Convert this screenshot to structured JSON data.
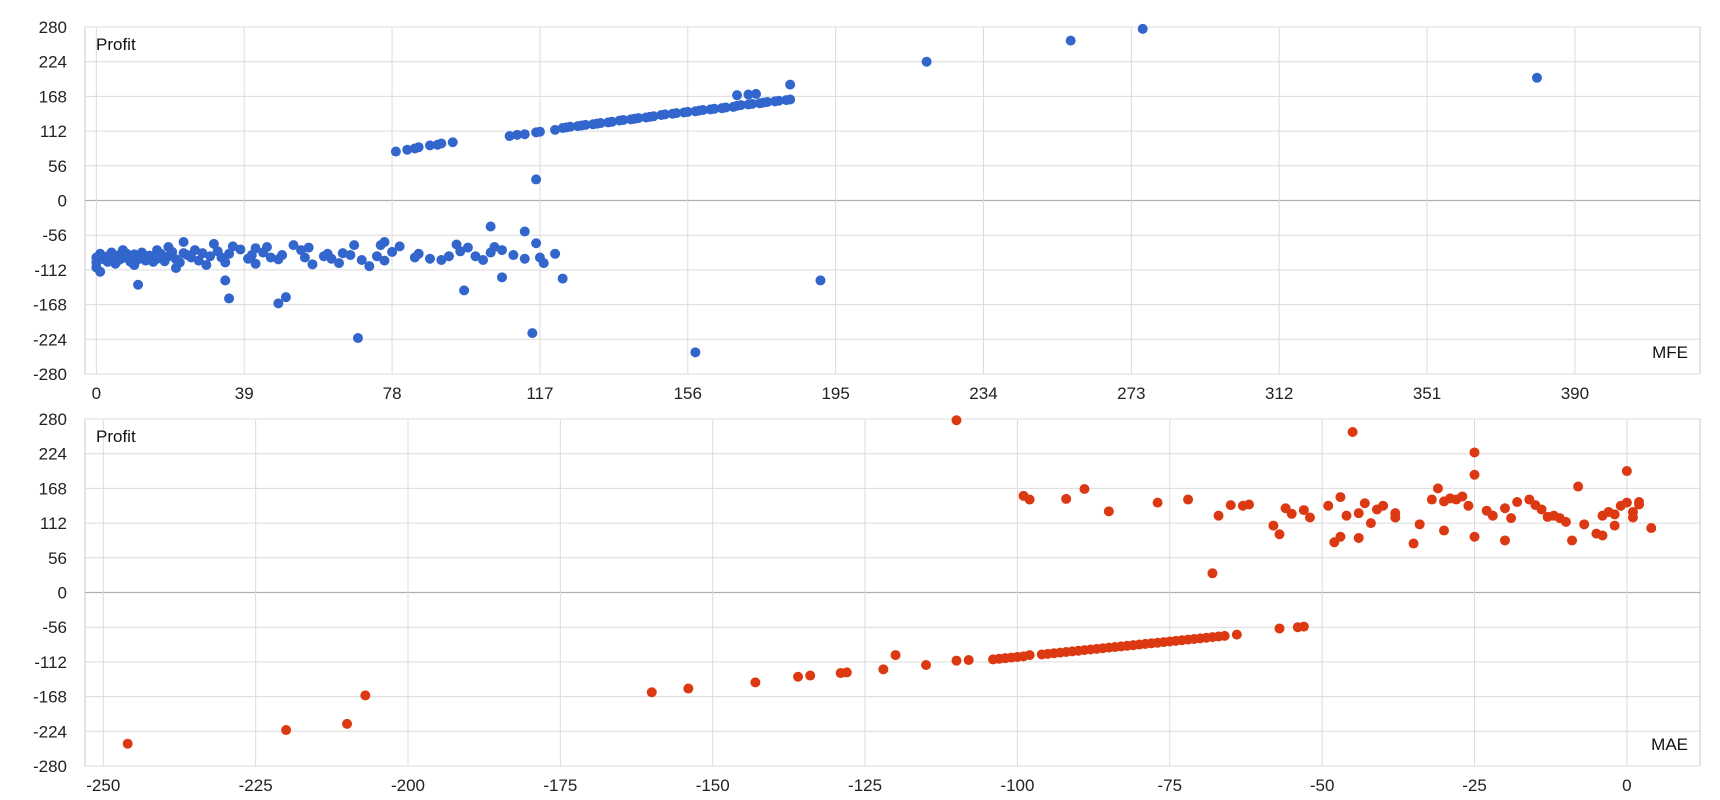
{
  "chart_data": [
    {
      "type": "scatter",
      "title": "",
      "xlabel": "MFE",
      "ylabel": "Profit",
      "xlim": [
        -3,
        423
      ],
      "ylim": [
        -280,
        280
      ],
      "xticks": [
        0,
        39,
        78,
        117,
        156,
        195,
        234,
        273,
        312,
        351,
        390
      ],
      "yticks": [
        280,
        224,
        168,
        112,
        56,
        0,
        -56,
        -112,
        -168,
        -224,
        -280
      ],
      "grid": true,
      "legend": "none",
      "color": "#3366cc",
      "points": [
        [
          0,
          -92
        ],
        [
          0,
          -100
        ],
        [
          0,
          -108
        ],
        [
          1,
          -86
        ],
        [
          1,
          -115
        ],
        [
          2,
          -95
        ],
        [
          3,
          -90
        ],
        [
          3,
          -99
        ],
        [
          4,
          -84
        ],
        [
          5,
          -92
        ],
        [
          5,
          -102
        ],
        [
          6,
          -88
        ],
        [
          6,
          -96
        ],
        [
          7,
          -80
        ],
        [
          7,
          -93
        ],
        [
          8,
          -86
        ],
        [
          9,
          -99
        ],
        [
          9,
          -91
        ],
        [
          10,
          -104
        ],
        [
          10,
          -87
        ],
        [
          11,
          -95
        ],
        [
          12,
          -92
        ],
        [
          12,
          -84
        ],
        [
          13,
          -97
        ],
        [
          14,
          -89
        ],
        [
          15,
          -99
        ],
        [
          16,
          -80
        ],
        [
          16,
          -94
        ],
        [
          17,
          -86
        ],
        [
          18,
          -98
        ],
        [
          19,
          -75
        ],
        [
          19,
          -90
        ],
        [
          20,
          -83
        ],
        [
          21,
          -109
        ],
        [
          21,
          -95
        ],
        [
          22,
          -100
        ],
        [
          23,
          -67
        ],
        [
          23,
          -85
        ],
        [
          24,
          -88
        ],
        [
          25,
          -92
        ],
        [
          26,
          -80
        ],
        [
          27,
          -97
        ],
        [
          28,
          -85
        ],
        [
          29,
          -104
        ],
        [
          30,
          -90
        ],
        [
          31,
          -70
        ],
        [
          32,
          -82
        ],
        [
          33,
          -92
        ],
        [
          34,
          -100
        ],
        [
          35,
          -86
        ],
        [
          36,
          -74
        ],
        [
          38,
          -79
        ],
        [
          40,
          -94
        ],
        [
          41,
          -88
        ],
        [
          42,
          -102
        ],
        [
          44,
          -84
        ],
        [
          45,
          -75
        ],
        [
          46,
          -92
        ],
        [
          48,
          -95
        ],
        [
          49,
          -88
        ],
        [
          52,
          -72
        ],
        [
          54,
          -80
        ],
        [
          55,
          -92
        ],
        [
          56,
          -76
        ],
        [
          57,
          -103
        ],
        [
          60,
          -90
        ],
        [
          61,
          -86
        ],
        [
          62,
          -94
        ],
        [
          64,
          -101
        ],
        [
          65,
          -85
        ],
        [
          67,
          -88
        ],
        [
          68,
          -72
        ],
        [
          70,
          -96
        ],
        [
          72,
          -106
        ],
        [
          74,
          -90
        ],
        [
          76,
          -97
        ],
        [
          78,
          -83
        ],
        [
          80,
          -74
        ],
        [
          84,
          -92
        ],
        [
          85,
          -86
        ],
        [
          88,
          -94
        ],
        [
          91,
          -96
        ],
        [
          93,
          -90
        ],
        [
          95,
          -71
        ],
        [
          96,
          -82
        ],
        [
          98,
          -76
        ],
        [
          100,
          -90
        ],
        [
          102,
          -96
        ],
        [
          104,
          -84
        ],
        [
          107,
          -80
        ],
        [
          110,
          -88
        ],
        [
          113,
          -94
        ],
        [
          117,
          -92
        ],
        [
          118,
          -101
        ],
        [
          121,
          -86
        ],
        [
          11,
          -136
        ],
        [
          34,
          -129
        ],
        [
          35,
          -158
        ],
        [
          48,
          -166
        ],
        [
          50,
          -156
        ],
        [
          69,
          -222
        ],
        [
          97,
          -145
        ],
        [
          107,
          -124
        ],
        [
          115,
          -214
        ],
        [
          123,
          -126
        ],
        [
          158,
          -245
        ],
        [
          191,
          -129
        ],
        [
          104,
          -42
        ],
        [
          113,
          -50
        ],
        [
          116,
          -69
        ],
        [
          75,
          -72
        ],
        [
          76,
          -67
        ],
        [
          42,
          -77
        ],
        [
          105,
          -75
        ],
        [
          79,
          79
        ],
        [
          82,
          82
        ],
        [
          84,
          84
        ],
        [
          85,
          86
        ],
        [
          88,
          89
        ],
        [
          90,
          90
        ],
        [
          91,
          92
        ],
        [
          94,
          94
        ],
        [
          109,
          104
        ],
        [
          111,
          106
        ],
        [
          113,
          107
        ],
        [
          116,
          110
        ],
        [
          117,
          111
        ],
        [
          121,
          114
        ],
        [
          123,
          117
        ],
        [
          124,
          118
        ],
        [
          125,
          119
        ],
        [
          127,
          120
        ],
        [
          128,
          121
        ],
        [
          129,
          122
        ],
        [
          131,
          123
        ],
        [
          132,
          124
        ],
        [
          133,
          125
        ],
        [
          135,
          126
        ],
        [
          136,
          127
        ],
        [
          138,
          129
        ],
        [
          139,
          130
        ],
        [
          141,
          131
        ],
        [
          142,
          132
        ],
        [
          143,
          133
        ],
        [
          145,
          134
        ],
        [
          146,
          135
        ],
        [
          147,
          136
        ],
        [
          149,
          138
        ],
        [
          150,
          139
        ],
        [
          152,
          140
        ],
        [
          153,
          141
        ],
        [
          155,
          142
        ],
        [
          156,
          143
        ],
        [
          158,
          144
        ],
        [
          159,
          145
        ],
        [
          160,
          146
        ],
        [
          162,
          147
        ],
        [
          163,
          148
        ],
        [
          165,
          149
        ],
        [
          166,
          150
        ],
        [
          168,
          151
        ],
        [
          169,
          153
        ],
        [
          170,
          154
        ],
        [
          172,
          155
        ],
        [
          173,
          156
        ],
        [
          175,
          157
        ],
        [
          176,
          158
        ],
        [
          177,
          159
        ],
        [
          179,
          160
        ],
        [
          180,
          161
        ],
        [
          182,
          162
        ],
        [
          183,
          163
        ],
        [
          116,
          34
        ],
        [
          169,
          170
        ],
        [
          172,
          171
        ],
        [
          174,
          172
        ],
        [
          183,
          187
        ],
        [
          219,
          224
        ],
        [
          257,
          258
        ],
        [
          276,
          277
        ],
        [
          380,
          198
        ]
      ]
    },
    {
      "type": "scatter",
      "title": "",
      "xlabel": "MAE",
      "ylabel": "Profit",
      "xlim": [
        -253,
        12
      ],
      "ylim": [
        -280,
        280
      ],
      "xticks": [
        -250,
        -225,
        -200,
        -175,
        -150,
        -125,
        -100,
        -75,
        -50,
        -25,
        0
      ],
      "yticks": [
        280,
        224,
        168,
        112,
        56,
        0,
        -56,
        -112,
        -168,
        -224,
        -280
      ],
      "grid": true,
      "legend": "none",
      "color": "#dc3912",
      "points": [
        [
          -246,
          -244
        ],
        [
          -220,
          -222
        ],
        [
          -210,
          -212
        ],
        [
          -207,
          -166
        ],
        [
          -160,
          -161
        ],
        [
          -154,
          -155
        ],
        [
          -143,
          -145
        ],
        [
          -136,
          -136
        ],
        [
          -134,
          -134
        ],
        [
          -129,
          -130
        ],
        [
          -128,
          -129
        ],
        [
          -122,
          -124
        ],
        [
          -120,
          -101
        ],
        [
          -115,
          -117
        ],
        [
          -110,
          -110
        ],
        [
          -108,
          -109
        ],
        [
          -104,
          -108
        ],
        [
          -103,
          -107
        ],
        [
          -102,
          -106
        ],
        [
          -101,
          -105
        ],
        [
          -100,
          -104
        ],
        [
          -99,
          -103
        ],
        [
          -98,
          -101
        ],
        [
          -96,
          -100
        ],
        [
          -95,
          -99
        ],
        [
          -94,
          -98
        ],
        [
          -93,
          -97
        ],
        [
          -92,
          -96
        ],
        [
          -91,
          -95
        ],
        [
          -90,
          -94
        ],
        [
          -89,
          -93
        ],
        [
          -88,
          -92
        ],
        [
          -87,
          -91
        ],
        [
          -86,
          -90
        ],
        [
          -85,
          -89
        ],
        [
          -84,
          -88
        ],
        [
          -83,
          -87
        ],
        [
          -82,
          -86
        ],
        [
          -81,
          -85
        ],
        [
          -80,
          -84
        ],
        [
          -79,
          -83
        ],
        [
          -78,
          -82
        ],
        [
          -77,
          -81
        ],
        [
          -76,
          -80
        ],
        [
          -75,
          -79
        ],
        [
          -74,
          -78
        ],
        [
          -73,
          -77
        ],
        [
          -72,
          -76
        ],
        [
          -71,
          -75
        ],
        [
          -70,
          -74
        ],
        [
          -69,
          -73
        ],
        [
          -68,
          -72
        ],
        [
          -67,
          -71
        ],
        [
          -66,
          -70
        ],
        [
          -64,
          -68
        ],
        [
          -57,
          -58
        ],
        [
          -54,
          -56
        ],
        [
          -53,
          -55
        ],
        [
          -110,
          278
        ],
        [
          -99,
          156
        ],
        [
          -98,
          150
        ],
        [
          -92,
          151
        ],
        [
          -89,
          167
        ],
        [
          -85,
          131
        ],
        [
          -77,
          145
        ],
        [
          -72,
          150
        ],
        [
          -68,
          31
        ],
        [
          -67,
          124
        ],
        [
          -65,
          141
        ],
        [
          -63,
          140
        ],
        [
          -62,
          142
        ],
        [
          -58,
          108
        ],
        [
          -57,
          94
        ],
        [
          -56,
          136
        ],
        [
          -55,
          127
        ],
        [
          -53,
          133
        ],
        [
          -52,
          121
        ],
        [
          -49,
          140
        ],
        [
          -48,
          81
        ],
        [
          -47,
          154
        ],
        [
          -47,
          90
        ],
        [
          -46,
          124
        ],
        [
          -45,
          259
        ],
        [
          -44,
          88
        ],
        [
          -44,
          128
        ],
        [
          -43,
          144
        ],
        [
          -42,
          112
        ],
        [
          -41,
          134
        ],
        [
          -40,
          140
        ],
        [
          -38,
          128
        ],
        [
          -38,
          121
        ],
        [
          -35,
          79
        ],
        [
          -34,
          110
        ],
        [
          -32,
          150
        ],
        [
          -31,
          168
        ],
        [
          -30,
          100
        ],
        [
          -30,
          147
        ],
        [
          -29,
          152
        ],
        [
          -28,
          150
        ],
        [
          -27,
          155
        ],
        [
          -26,
          140
        ],
        [
          -25,
          190
        ],
        [
          -25,
          226
        ],
        [
          -25,
          90
        ],
        [
          -23,
          132
        ],
        [
          -22,
          124
        ],
        [
          -20,
          136
        ],
        [
          -20,
          84
        ],
        [
          -19,
          120
        ],
        [
          -18,
          146
        ],
        [
          -16,
          150
        ],
        [
          -15,
          141
        ],
        [
          -14,
          134
        ],
        [
          -13,
          122
        ],
        [
          -12,
          124
        ],
        [
          -11,
          120
        ],
        [
          -10,
          114
        ],
        [
          -9,
          84
        ],
        [
          -8,
          171
        ],
        [
          -7,
          110
        ],
        [
          -5,
          95
        ],
        [
          -4,
          124
        ],
        [
          -4,
          92
        ],
        [
          -3,
          130
        ],
        [
          -2,
          108
        ],
        [
          -2,
          126
        ],
        [
          -1,
          140
        ],
        [
          0,
          145
        ],
        [
          0,
          196
        ],
        [
          1,
          121
        ],
        [
          1,
          130
        ],
        [
          2,
          146
        ],
        [
          2,
          142
        ],
        [
          4,
          104
        ]
      ]
    }
  ]
}
